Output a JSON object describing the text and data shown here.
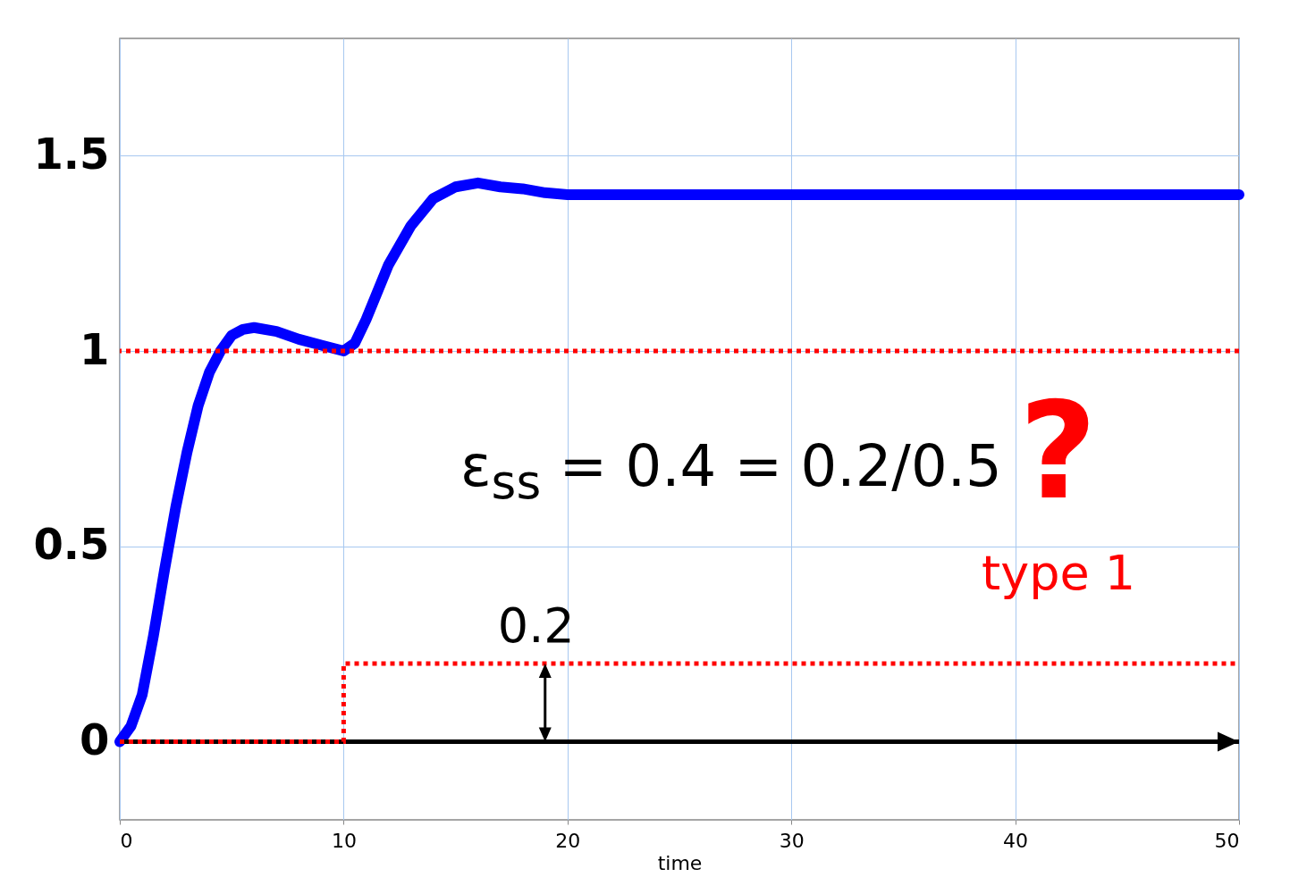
{
  "chart_data": {
    "type": "line",
    "xlabel": "time",
    "xlim": [
      0,
      50
    ],
    "xticks": [
      0,
      10,
      20,
      30,
      40,
      50
    ],
    "ylim": [
      -0.2,
      1.8
    ],
    "yticks": [
      0,
      0.5,
      1,
      1.5
    ],
    "grid": true,
    "series": [
      {
        "type": "line",
        "color": "#0000ff",
        "x": [
          0,
          0.5,
          1,
          1.5,
          2,
          2.5,
          3,
          3.5,
          4,
          4.5,
          5,
          5.5,
          6,
          7,
          8,
          9,
          10,
          10.5,
          11,
          12,
          13,
          14,
          15,
          16,
          17,
          18,
          19,
          20,
          30,
          40,
          50
        ],
        "values": [
          0,
          0.04,
          0.12,
          0.27,
          0.44,
          0.6,
          0.74,
          0.86,
          0.945,
          1.0,
          1.04,
          1.055,
          1.06,
          1.05,
          1.03,
          1.015,
          1.0,
          1.02,
          1.08,
          1.22,
          1.32,
          1.39,
          1.42,
          1.43,
          1.42,
          1.415,
          1.405,
          1.4,
          1.4,
          1.4,
          1.4
        ]
      },
      {
        "type": "step",
        "color": "#ff0000",
        "line_style": "dotted",
        "x": [
          0,
          10,
          50
        ],
        "values": [
          0,
          0.2,
          0.2
        ]
      }
    ],
    "ref_lines": [
      {
        "axis": "y",
        "value": 0,
        "color": "#000000",
        "line_style": "solid"
      },
      {
        "axis": "y",
        "value": 1,
        "color": "#ff0000",
        "line_style": "dotted"
      }
    ],
    "annotations": [
      {
        "text": "0.2",
        "x": 19,
        "y": 0.2
      },
      "ε$_{ss}$ = 0.4 = 0.2/0.5",
      "?",
      "type 1"
    ]
  }
}
